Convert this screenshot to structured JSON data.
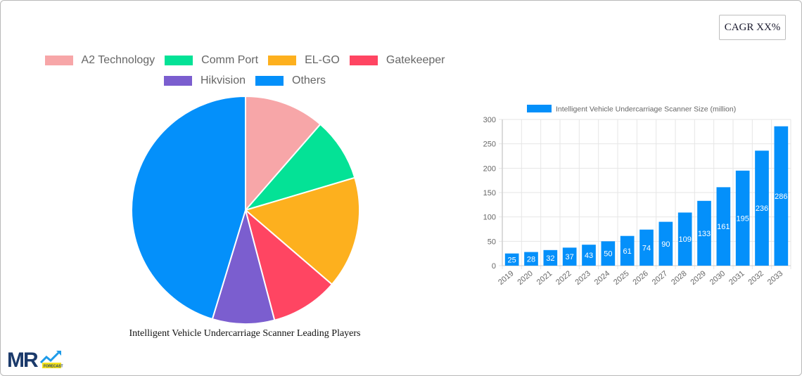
{
  "header": {
    "cagr_label": "CAGR XX%"
  },
  "pie": {
    "title": "Intelligent Vehicle Undercarriage Scanner Leading Players",
    "legend": [
      {
        "label": "A2 Technology",
        "color": "#F7A6A8"
      },
      {
        "label": "Comm Port",
        "color": "#04E296"
      },
      {
        "label": "EL-GO",
        "color": "#FDB01E"
      },
      {
        "label": "Gatekeeper",
        "color": "#FF4562"
      },
      {
        "label": "Hikvision",
        "color": "#7B5ECF"
      },
      {
        "label": "Others",
        "color": "#0490FA"
      }
    ]
  },
  "bar": {
    "legend_label": "Intelligent Vehicle Undercarriage Scanner Size (million)",
    "color": "#0490FA"
  },
  "logo": {
    "text": "MR",
    "badge": "FORECAST"
  },
  "chart_data": [
    {
      "type": "pie",
      "title": "Intelligent Vehicle Undercarriage Scanner Leading Players",
      "categories": [
        "A2 Technology",
        "Comm Port",
        "EL-GO",
        "Gatekeeper",
        "Hikvision",
        "Others"
      ],
      "values": [
        11.4,
        9.0,
        15.9,
        9.6,
        8.8,
        45.3
      ],
      "colors": [
        "#F7A6A8",
        "#04E296",
        "#FDB01E",
        "#FF4562",
        "#7B5ECF",
        "#0490FA"
      ],
      "legend_position": "top"
    },
    {
      "type": "bar",
      "title": "",
      "series": [
        {
          "name": "Intelligent Vehicle Undercarriage Scanner Size (million)",
          "values": [
            25,
            28,
            32,
            37,
            43,
            50,
            61,
            74,
            90,
            109,
            133,
            161,
            195,
            236,
            286
          ]
        }
      ],
      "categories": [
        "2019",
        "2020",
        "2021",
        "2022",
        "2023",
        "2024",
        "2025",
        "2026",
        "2027",
        "2028",
        "2029",
        "2030",
        "2031",
        "2032",
        "2033"
      ],
      "xlabel": "",
      "ylabel": "",
      "ylim": [
        0,
        300
      ],
      "yticks": [
        0,
        50,
        100,
        150,
        200,
        250,
        300
      ],
      "grid": true,
      "legend_position": "top",
      "data_labels": true
    }
  ]
}
